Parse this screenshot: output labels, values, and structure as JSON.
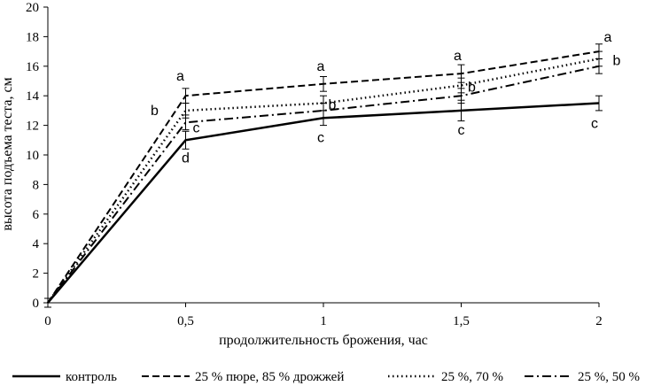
{
  "chart_data": {
    "type": "line",
    "xlabel": "продолжительность брожения, час",
    "ylabel": "высота подъема теста, см",
    "x": [
      0,
      0.5,
      1,
      1.5,
      2
    ],
    "x_tick_labels": [
      "0",
      "0,5",
      "1",
      "1,5",
      "2"
    ],
    "y_ticks": [
      0,
      2,
      4,
      6,
      8,
      10,
      12,
      14,
      16,
      18,
      20
    ],
    "xlim": [
      0,
      2
    ],
    "ylim": [
      0,
      20
    ],
    "grid": false,
    "legend_position": "bottom",
    "series": [
      {
        "name": "контроль",
        "style": "solid",
        "values": [
          0,
          11.0,
          12.5,
          13.0,
          13.5
        ],
        "errors": [
          0.3,
          0.6,
          0.5,
          0.7,
          0.5
        ],
        "sig_letters": [
          "",
          "d",
          "c",
          "c",
          "c"
        ]
      },
      {
        "name": "25 % пюре, 85 % дрожжей",
        "style": "dashed",
        "values": [
          0,
          14.0,
          14.8,
          15.5,
          17.0
        ],
        "errors": [
          0.3,
          0.5,
          0.5,
          0.6,
          0.5
        ],
        "sig_letters": [
          "",
          "a",
          "a",
          "a",
          "a"
        ]
      },
      {
        "name": "25 %, 70 %",
        "style": "dotted",
        "values": [
          0,
          13.0,
          13.5,
          14.7,
          16.5
        ],
        "errors": [
          0.3,
          0.5,
          0.5,
          0.5,
          0.5
        ],
        "sig_letters": [
          "",
          "b",
          "b",
          "b",
          "b"
        ]
      },
      {
        "name": "25 %, 50 %",
        "style": "dashdot",
        "values": [
          0,
          12.2,
          13.0,
          14.0,
          16.0
        ],
        "errors": [
          0.3,
          0.5,
          0.5,
          0.5,
          0.5
        ],
        "sig_letters": [
          "",
          "c",
          "",
          "",
          ""
        ]
      }
    ]
  },
  "colors": {
    "line": "#000000",
    "background": "#ffffff"
  }
}
